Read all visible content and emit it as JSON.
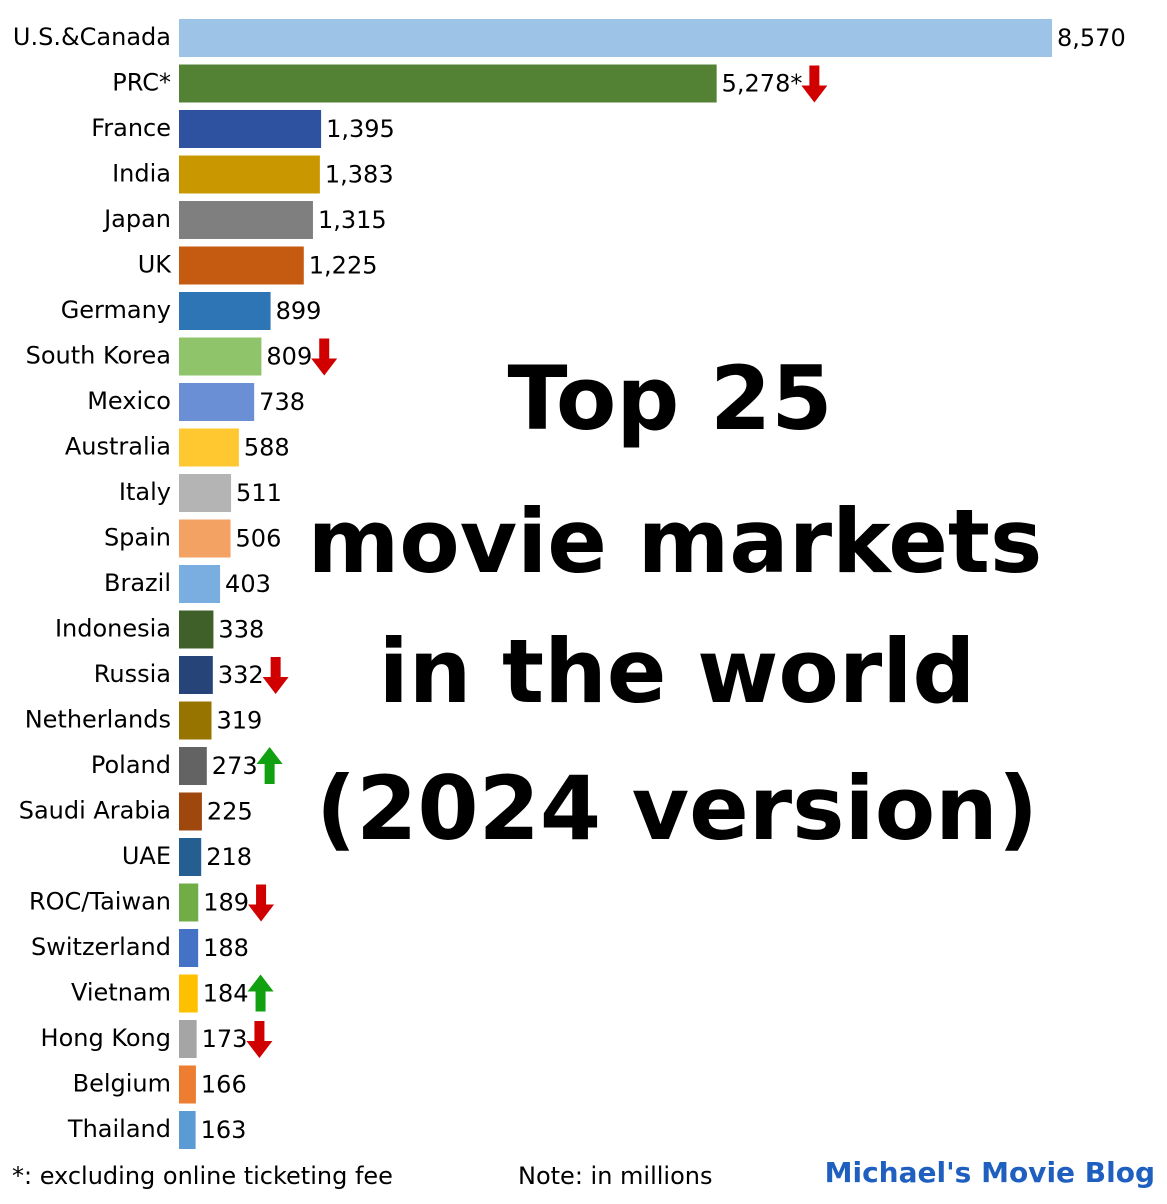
{
  "chart_data": {
    "type": "bar",
    "orientation": "horizontal",
    "title": [
      "Top 25",
      "movie markets",
      "in the world",
      "(2024 version)"
    ],
    "categories": [
      "U.S.&Canada",
      "PRC*",
      "France",
      "India",
      "Japan",
      "UK",
      "Germany",
      "South Korea",
      "Mexico",
      "Australia",
      "Italy",
      "Spain",
      "Brazil",
      "Indonesia",
      "Russia",
      "Netherlands",
      "Poland",
      "Saudi Arabia",
      "UAE",
      "ROC/Taiwan",
      "Switzerland",
      "Vietnam",
      "Hong Kong",
      "Belgium",
      "Thailand"
    ],
    "values": [
      8570,
      5278,
      1395,
      1383,
      1315,
      1225,
      899,
      809,
      738,
      588,
      511,
      506,
      403,
      338,
      332,
      319,
      273,
      225,
      218,
      189,
      188,
      184,
      173,
      166,
      163
    ],
    "value_labels": [
      "8,570",
      "5,278*",
      "1,395",
      "1,383",
      "1,315",
      "1,225",
      "899",
      "809",
      "738",
      "588",
      "511",
      "506",
      "403",
      "338",
      "332",
      "319",
      "273",
      "225",
      "218",
      "189",
      "188",
      "184",
      "173",
      "166",
      "163"
    ],
    "colors": [
      "#9dc3e6",
      "#548235",
      "#2f52a0",
      "#c99800",
      "#7f7f7f",
      "#c55a11",
      "#2e75b6",
      "#8fc46a",
      "#6a8fd4",
      "#ffc830",
      "#b4b4b4",
      "#f4a164",
      "#7aaee0",
      "#3f6129",
      "#264478",
      "#977300",
      "#636363",
      "#9e480e",
      "#255e91",
      "#70ad47",
      "#4472c4",
      "#ffc000",
      "#a5a5a5",
      "#ed7d31",
      "#5b9bd5"
    ],
    "trend_arrows": [
      null,
      "down",
      null,
      null,
      null,
      null,
      null,
      "down",
      null,
      null,
      null,
      null,
      null,
      null,
      "down",
      null,
      "up",
      null,
      null,
      "down",
      null,
      "up",
      "down",
      null,
      null
    ],
    "footnote": "*: excluding online ticketing fee",
    "note": "Note: in millions",
    "source": "Michael's Movie Blog"
  }
}
